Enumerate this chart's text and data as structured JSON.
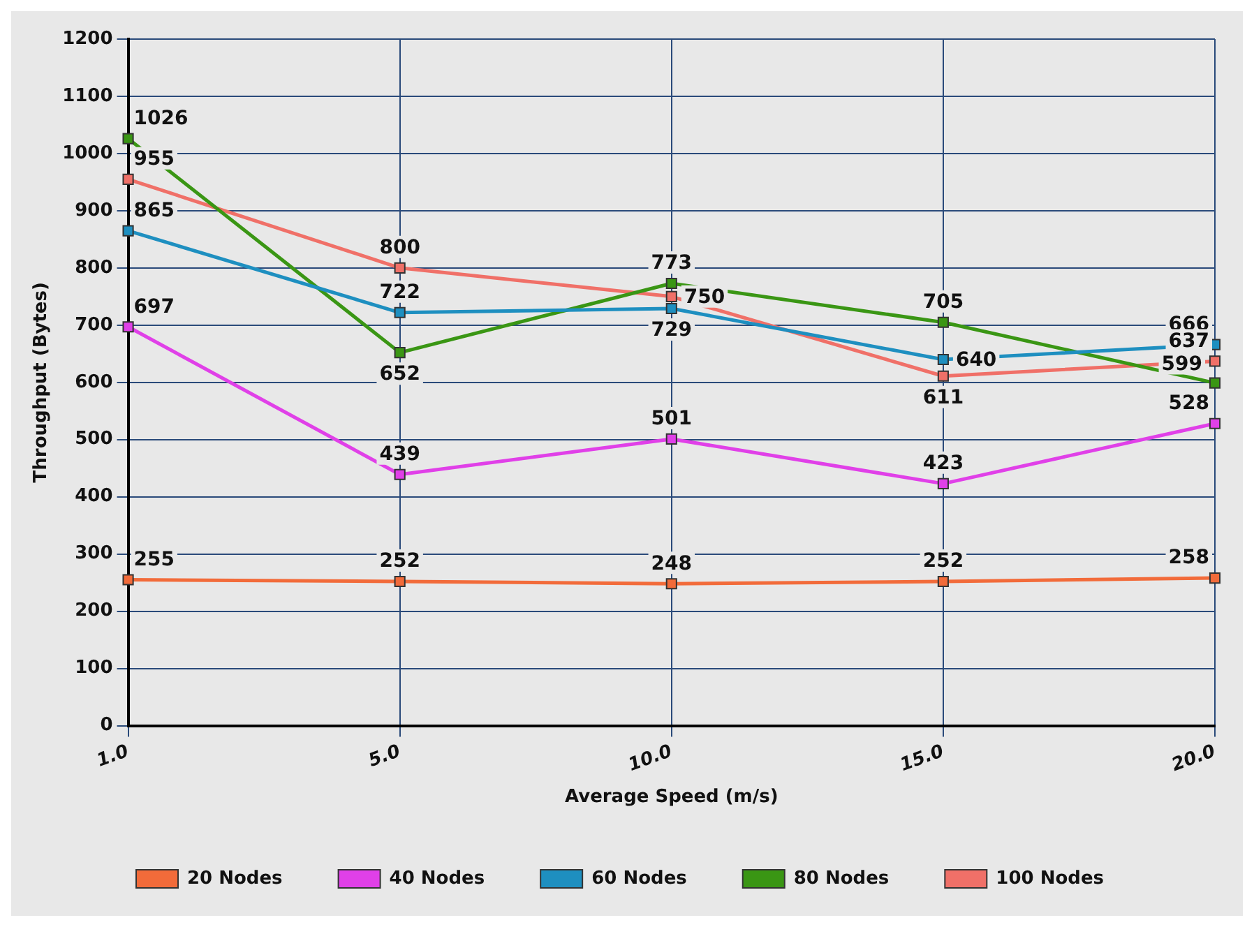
{
  "chart_data": {
    "type": "line",
    "xlabel": "Average Speed (m/s)",
    "ylabel": "Throughput (Bytes)",
    "categories": [
      "1.0",
      "5.0",
      "10.0",
      "15.0",
      "20.0"
    ],
    "series": [
      {
        "name": "20 Nodes",
        "color": "#f26b3a",
        "values": [
          255,
          252,
          248,
          252,
          258
        ]
      },
      {
        "name": "40 Nodes",
        "color": "#e040e8",
        "values": [
          697,
          439,
          501,
          423,
          528
        ]
      },
      {
        "name": "60 Nodes",
        "color": "#1e8fc0",
        "values": [
          865,
          722,
          729,
          640,
          666
        ]
      },
      {
        "name": "80 Nodes",
        "color": "#3a9614",
        "values": [
          1026,
          652,
          773,
          705,
          599
        ]
      },
      {
        "name": "100 Nodes",
        "color": "#f07068",
        "values": [
          955,
          800,
          750,
          611,
          637
        ]
      }
    ],
    "ylim": [
      0,
      1200
    ],
    "yticks": [
      0,
      100,
      200,
      300,
      400,
      500,
      600,
      700,
      800,
      900,
      1000,
      1100,
      1200
    ],
    "grid": true,
    "legend": "bottom",
    "marker": "square",
    "line_style": "solid",
    "data_labels": true
  }
}
